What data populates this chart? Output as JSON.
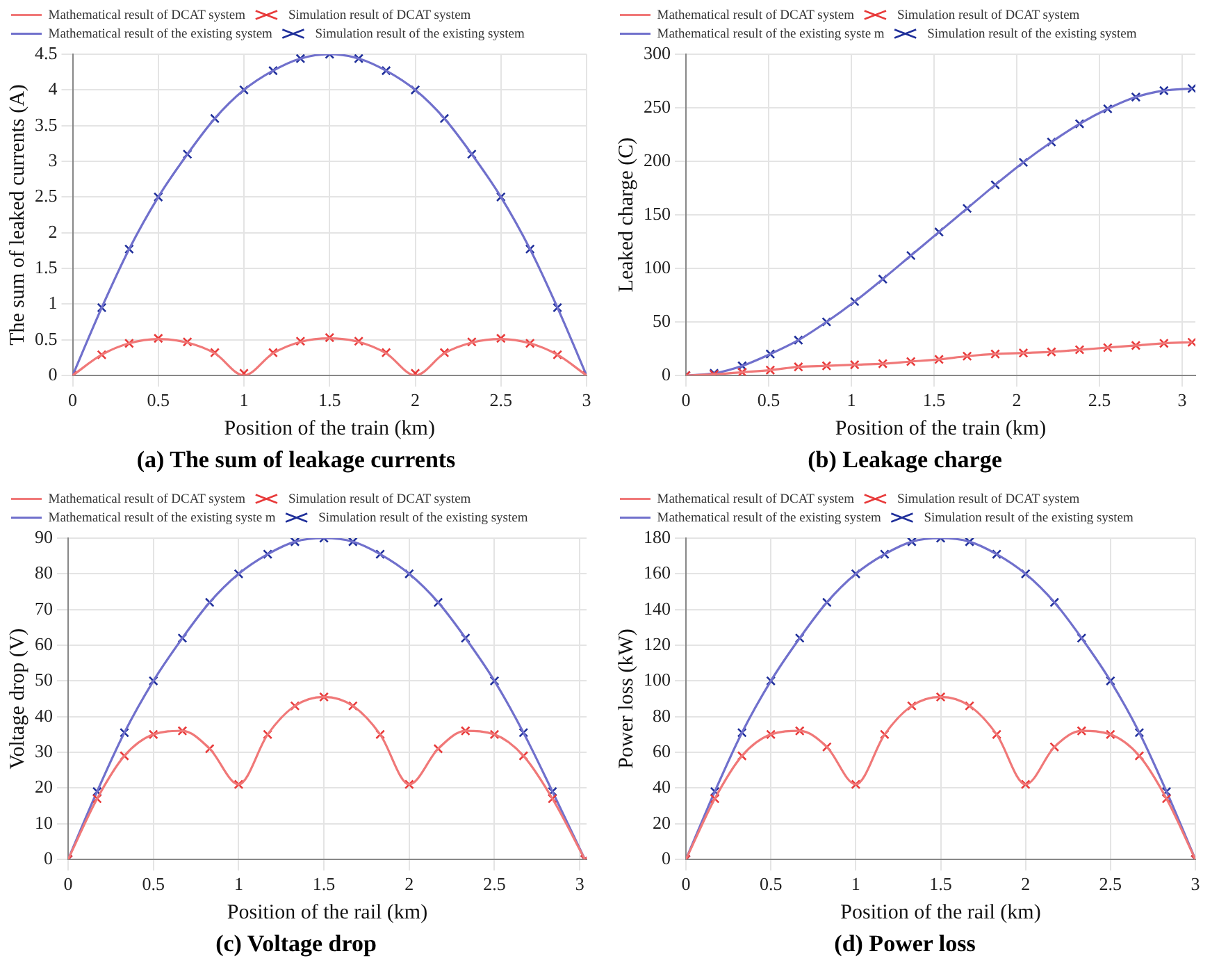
{
  "chart_data": [
    {
      "type": "line",
      "title": "(a) The sum of leakage currents",
      "xlabel": "Position of the train (km)",
      "ylabel": "The sum of leaked currents (A)",
      "x": [
        0,
        0.17,
        0.33,
        0.5,
        0.67,
        0.83,
        1,
        1.17,
        1.33,
        1.5,
        1.67,
        1.83,
        2,
        2.17,
        2.33,
        2.5,
        2.67,
        2.83,
        3
      ],
      "xlim": [
        0,
        3
      ],
      "xticks": [
        0,
        0.5,
        1,
        1.5,
        2,
        2.5,
        3
      ],
      "ylim": [
        0,
        4.5
      ],
      "yticks": [
        0,
        0.5,
        1,
        1.5,
        2,
        2.5,
        3,
        3.5,
        4,
        4.5
      ],
      "grid": true,
      "legend": "top",
      "series": [
        {
          "name": "Mathematical result of DCAT system",
          "type": "line",
          "marker": "none",
          "color": "#f07878",
          "values": [
            0,
            0.29,
            0.45,
            0.51,
            0.46,
            0.31,
            0,
            0.31,
            0.47,
            0.52,
            0.47,
            0.31,
            0,
            0.31,
            0.46,
            0.51,
            0.45,
            0.29,
            0
          ]
        },
        {
          "name": "Simulation result of DCAT system",
          "type": "scatter",
          "marker": "cross",
          "color": "#e83a3a",
          "values": [
            0,
            0.29,
            0.45,
            0.52,
            0.47,
            0.32,
            0.03,
            0.32,
            0.48,
            0.53,
            0.48,
            0.32,
            0.03,
            0.32,
            0.47,
            0.52,
            0.45,
            0.29,
            0
          ]
        },
        {
          "name": "Mathematical result of the existing system",
          "type": "line",
          "marker": "none",
          "color": "#7070cc",
          "values": [
            0,
            0.95,
            1.77,
            2.5,
            3.1,
            3.6,
            4,
            4.27,
            4.44,
            4.5,
            4.44,
            4.27,
            4,
            3.6,
            3.1,
            2.5,
            1.77,
            0.95,
            0
          ]
        },
        {
          "name": "Simulation result of the existing system",
          "type": "scatter",
          "marker": "cross",
          "color": "#1f2f9a",
          "values": [
            0,
            0.95,
            1.77,
            2.5,
            3.1,
            3.6,
            4,
            4.27,
            4.44,
            4.5,
            4.44,
            4.27,
            4,
            3.6,
            3.1,
            2.5,
            1.77,
            0.95,
            0
          ]
        }
      ]
    },
    {
      "type": "line",
      "title": "(b) Leakage charge",
      "xlabel": "Position of the train (km)",
      "ylabel": "Leaked charge (C)",
      "x": [
        0,
        0.17,
        0.34,
        0.51,
        0.68,
        0.85,
        1.02,
        1.19,
        1.36,
        1.53,
        1.7,
        1.87,
        2.04,
        2.21,
        2.38,
        2.55,
        2.72,
        2.89,
        3.06
      ],
      "xlim": [
        0,
        3.08
      ],
      "xticks": [
        0,
        0.5,
        1,
        1.5,
        2,
        2.5,
        3
      ],
      "ylim": [
        0,
        300
      ],
      "yticks": [
        0,
        50,
        100,
        150,
        200,
        250,
        300
      ],
      "grid": true,
      "legend": "top",
      "series": [
        {
          "name": "Mathematical result of DCAT system",
          "type": "line",
          "marker": "none",
          "color": "#f07878",
          "values": [
            0,
            1,
            3,
            5,
            8,
            9,
            10,
            11,
            13,
            15,
            18,
            20,
            21,
            22,
            24,
            26,
            28,
            30,
            31
          ]
        },
        {
          "name": "Simulation result of DCAT system",
          "type": "scatter",
          "marker": "cross",
          "color": "#e83a3a",
          "values": [
            0,
            1,
            3,
            5,
            8,
            9,
            10,
            11,
            13,
            15,
            18,
            20,
            21,
            22,
            24,
            26,
            28,
            30,
            31
          ]
        },
        {
          "name": "Mathematical result of the existing syste m",
          "type": "line",
          "marker": "none",
          "color": "#7070cc",
          "values": [
            0,
            2,
            9,
            20,
            33,
            50,
            69,
            90,
            112,
            134,
            156,
            178,
            199,
            218,
            235,
            249,
            260,
            266,
            268
          ]
        },
        {
          "name": "Simulation result of the existing system",
          "type": "scatter",
          "marker": "cross",
          "color": "#1f2f9a",
          "values": [
            0,
            2,
            9,
            20,
            33,
            50,
            69,
            90,
            112,
            134,
            156,
            178,
            199,
            218,
            235,
            249,
            260,
            266,
            268
          ]
        }
      ]
    },
    {
      "type": "line",
      "title": "(c) Voltage drop",
      "xlabel": "Position of the rail (km)",
      "ylabel": "Voltage drop (V)",
      "x": [
        0,
        0.17,
        0.33,
        0.5,
        0.67,
        0.83,
        1,
        1.17,
        1.33,
        1.5,
        1.67,
        1.83,
        2,
        2.17,
        2.33,
        2.5,
        2.67,
        2.84,
        3.03
      ],
      "xlim": [
        0,
        3.04
      ],
      "xticks": [
        0,
        0.5,
        1,
        1.5,
        2,
        2.5,
        3
      ],
      "ylim": [
        0,
        90
      ],
      "yticks": [
        0,
        10,
        20,
        30,
        40,
        50,
        60,
        70,
        80,
        90
      ],
      "grid": true,
      "legend": "top",
      "series": [
        {
          "name": "Mathematical result of DCAT system",
          "type": "line",
          "marker": "none",
          "color": "#f07878",
          "values": [
            0,
            17,
            29,
            35,
            36,
            31,
            21,
            35,
            43,
            45.5,
            43,
            35,
            21,
            31,
            36,
            35,
            29,
            17,
            0
          ]
        },
        {
          "name": "Simulation result of DCAT system",
          "type": "scatter",
          "marker": "cross",
          "color": "#e83a3a",
          "values": [
            0,
            17,
            29,
            35,
            36,
            31,
            21,
            35,
            43,
            45.5,
            43,
            35,
            21,
            31,
            36,
            35,
            29,
            17,
            0
          ]
        },
        {
          "name": "Mathematical result of the existing syste m",
          "type": "line",
          "marker": "none",
          "color": "#7070cc",
          "values": [
            0,
            19,
            35.5,
            50,
            62,
            72,
            80,
            85.5,
            89,
            90,
            89,
            85.5,
            80,
            72,
            62,
            50,
            35.5,
            19,
            0
          ]
        },
        {
          "name": "Simulation result of the existing system",
          "type": "scatter",
          "marker": "cross",
          "color": "#1f2f9a",
          "values": [
            0,
            19,
            35.5,
            50,
            62,
            72,
            80,
            85.5,
            89,
            90,
            89,
            85.5,
            80,
            72,
            62,
            50,
            35.5,
            19,
            0
          ]
        }
      ]
    },
    {
      "type": "line",
      "title": "(d) Power loss",
      "xlabel": "Position of the rail (km)",
      "ylabel": "Power loss (kW)",
      "x": [
        0,
        0.17,
        0.33,
        0.5,
        0.67,
        0.83,
        1,
        1.17,
        1.33,
        1.5,
        1.67,
        1.83,
        2,
        2.17,
        2.33,
        2.5,
        2.67,
        2.83,
        3
      ],
      "xlim": [
        0,
        3
      ],
      "xticks": [
        0,
        0.5,
        1,
        1.5,
        2,
        2.5,
        3
      ],
      "ylim": [
        0,
        180
      ],
      "yticks": [
        0,
        20,
        40,
        60,
        80,
        100,
        120,
        140,
        160,
        180
      ],
      "grid": true,
      "legend": "top",
      "series": [
        {
          "name": "Mathematical result of DCAT system",
          "type": "line",
          "marker": "none",
          "color": "#f07878",
          "values": [
            0,
            34,
            58,
            70,
            72,
            63,
            42,
            70,
            86,
            91,
            86,
            70,
            42,
            63,
            72,
            70,
            58,
            34,
            0
          ]
        },
        {
          "name": "Simulation result of DCAT system",
          "type": "scatter",
          "marker": "cross",
          "color": "#e83a3a",
          "values": [
            0,
            34,
            58,
            70,
            72,
            63,
            42,
            70,
            86,
            91,
            86,
            70,
            42,
            63,
            72,
            70,
            58,
            34,
            0
          ]
        },
        {
          "name": "Mathematical result of the existing system",
          "type": "line",
          "marker": "none",
          "color": "#7070cc",
          "values": [
            0,
            38,
            71,
            100,
            124,
            144,
            160,
            171,
            178,
            180,
            178,
            171,
            160,
            144,
            124,
            100,
            71,
            38,
            0
          ]
        },
        {
          "name": "Simulation result of the existing system",
          "type": "scatter",
          "marker": "cross",
          "color": "#1f2f9a",
          "values": [
            0,
            38,
            71,
            100,
            124,
            144,
            160,
            171,
            178,
            180,
            178,
            171,
            160,
            144,
            124,
            100,
            71,
            38,
            0
          ]
        }
      ]
    }
  ]
}
